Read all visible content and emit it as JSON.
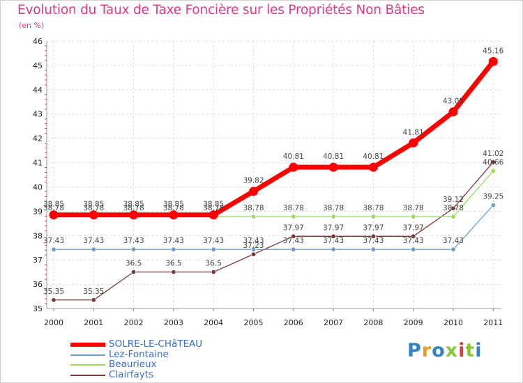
{
  "title": "Evolution du Taux de Taxe Foncière sur les Propriétés Non Bâties",
  "subtitle": "(en %)",
  "logo": {
    "text": "Proxiti",
    "letters": [
      "P",
      "r",
      "o",
      "x",
      "i",
      "t",
      "i"
    ],
    "colors": [
      "#2f84c8",
      "#f29a1a",
      "#2f84c8",
      "#8cc63f",
      "#e03a3a",
      "#8cc63f",
      "#2f84c8"
    ]
  },
  "chart_data": {
    "type": "line",
    "title": "Evolution du Taux de Taxe Foncière sur les Propriétés Non Bâties",
    "ylabel": "(en %)",
    "x": [
      "2000",
      "2001",
      "2002",
      "2003",
      "2004",
      "2005",
      "2006",
      "2007",
      "2008",
      "2009",
      "2010",
      "2011"
    ],
    "ylim": [
      35,
      46
    ],
    "yticks": [
      "35",
      "36",
      "37",
      "38",
      "39",
      "40",
      "41",
      "42",
      "43",
      "44",
      "45",
      "46"
    ],
    "grid": true,
    "legend_position": "bottom-left",
    "series": [
      {
        "name": "SOLRE-LE-CHâTEAU",
        "color": "#ff0000",
        "values": [
          38.85,
          38.85,
          38.85,
          38.85,
          38.85,
          39.82,
          40.81,
          40.81,
          40.81,
          41.81,
          43.09,
          45.16
        ],
        "labels": [
          "38.85",
          "38.85",
          "38.85",
          "38.85",
          "38.85",
          "39.82",
          "40.81",
          "40.81",
          "40.81",
          "41.81",
          "43.09",
          "45.16"
        ]
      },
      {
        "name": "Lez-Fontaine",
        "color": "#6a9fd0",
        "values": [
          37.43,
          37.43,
          37.43,
          37.43,
          37.43,
          37.43,
          37.43,
          37.43,
          37.43,
          37.43,
          37.43,
          39.25
        ],
        "labels": [
          "37.43",
          "37.43",
          "37.43",
          "37.43",
          "37.43",
          "37.43",
          "37.43",
          "37.43",
          "37.43",
          "37.43",
          "37.43",
          "39.25"
        ]
      },
      {
        "name": "Beaurieux",
        "color": "#99dd55",
        "values": [
          38.78,
          38.78,
          38.78,
          38.78,
          38.78,
          38.78,
          38.78,
          38.78,
          38.78,
          38.78,
          38.78,
          40.66
        ],
        "labels": [
          "38.78",
          "38.78",
          "38.78",
          "38.78",
          "38.78",
          "38.78",
          "38.78",
          "38.78",
          "38.78",
          "38.78",
          "38.78",
          "40.66"
        ]
      },
      {
        "name": "Clairfayts",
        "color": "#7a3a3a",
        "values": [
          35.35,
          35.35,
          36.5,
          36.5,
          36.5,
          37.23,
          37.97,
          37.97,
          37.97,
          37.97,
          39.12,
          41.02
        ],
        "labels": [
          "35.35",
          "35.35",
          "36.5",
          "36.5",
          "36.5",
          "37.23",
          "37.97",
          "37.97",
          "37.97",
          "37.97",
          "39.12",
          "41.02"
        ]
      }
    ]
  }
}
